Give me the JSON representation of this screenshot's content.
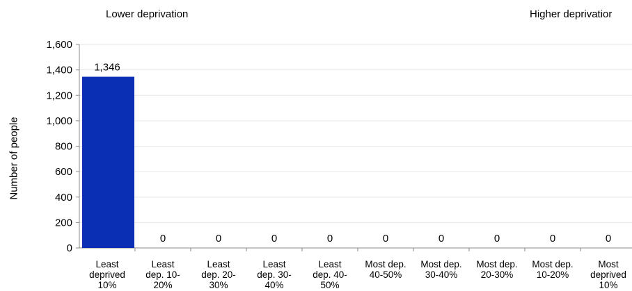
{
  "chart_data": {
    "type": "bar",
    "categories": [
      [
        "Least",
        "deprived",
        "10%"
      ],
      [
        "Least",
        "dep. 10-",
        "20%"
      ],
      [
        "Least",
        "dep. 20-",
        "30%"
      ],
      [
        "Least",
        "dep. 30-",
        "40%"
      ],
      [
        "Least",
        "dep. 40-",
        "50%"
      ],
      [
        "Most dep.",
        "40-50%"
      ],
      [
        "Most dep.",
        "30-40%"
      ],
      [
        "Most dep.",
        "20-30%"
      ],
      [
        "Most dep.",
        "10-20%"
      ],
      [
        "Most",
        "deprived",
        "10%"
      ]
    ],
    "values": [
      1346,
      0,
      0,
      0,
      0,
      0,
      0,
      0,
      0,
      0
    ],
    "value_labels": [
      "1,346",
      "0",
      "0",
      "0",
      "0",
      "0",
      "0",
      "0",
      "0",
      "0"
    ],
    "ylabel": "Number of people",
    "ylim": [
      0,
      1600
    ],
    "yticks": [
      0,
      200,
      400,
      600,
      800,
      1000,
      1200,
      1400,
      1600
    ],
    "ytick_labels": [
      "0",
      "200",
      "400",
      "600",
      "800",
      "1,000",
      "1,200",
      "1,400",
      "1,600"
    ],
    "grid": true,
    "bar_color": "#0a2fb5",
    "annotations": {
      "left": "Lower deprivation",
      "right": "Higher deprivatior"
    }
  }
}
